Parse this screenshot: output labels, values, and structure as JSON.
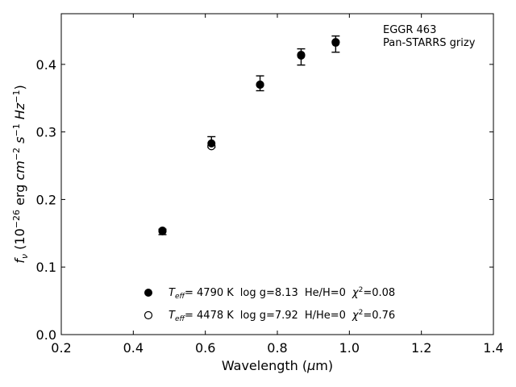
{
  "chart_data": {
    "type": "scatter",
    "title": "",
    "xlabel": "Wavelength (μm)",
    "ylabel": "fν (10⁻²⁶ erg cm⁻² s⁻¹ Hz⁻¹)",
    "xlim": [
      0.2,
      1.4
    ],
    "ylim": [
      0.0,
      0.475
    ],
    "xticks": [
      "0.2",
      "0.4",
      "0.6",
      "0.8",
      "1.0",
      "1.2",
      "1.4"
    ],
    "yticks": [
      "0.0",
      "0.1",
      "0.2",
      "0.3",
      "0.4"
    ],
    "annotation": [
      "EGGR 463",
      "Pan-STARRS grizy"
    ],
    "observed": {
      "x": [
        0.481,
        0.617,
        0.752,
        0.866,
        0.962
      ],
      "y": [
        0.152,
        0.285,
        0.372,
        0.411,
        0.43
      ],
      "yerr": [
        0.004,
        0.008,
        0.011,
        0.012,
        0.012
      ]
    },
    "series": [
      {
        "name": "Teff= 4790 K log g=8.13 He/H=0 χ²=0.08",
        "marker": "filled-circle",
        "x": [
          0.481,
          0.617,
          0.752,
          0.866,
          0.962
        ],
        "y": [
          0.154,
          0.283,
          0.37,
          0.413,
          0.432
        ]
      },
      {
        "name": "Teff= 4478 K log g=7.92 H/He=0 χ²=0.76",
        "marker": "open-circle",
        "x": [
          0.481,
          0.617,
          0.752,
          0.866,
          0.962
        ],
        "y": [
          0.153,
          0.279,
          0.37,
          0.414,
          0.433
        ]
      }
    ],
    "legend": {
      "placement": "lower-center",
      "entries": [
        {
          "teff_label": "T",
          "teff_sub": "eff",
          "teff_value": "=  4790 K",
          "logg": "log g=8.13",
          "comp": "He/H=0",
          "chi_label": "χ",
          "chi_value": "=0.08"
        },
        {
          "teff_label": "T",
          "teff_sub": "eff",
          "teff_value": "=  4478 K",
          "logg": "log g=7.92",
          "comp": "H/He=0",
          "chi_label": "χ",
          "chi_value": "=0.76"
        }
      ]
    },
    "grid": false
  }
}
